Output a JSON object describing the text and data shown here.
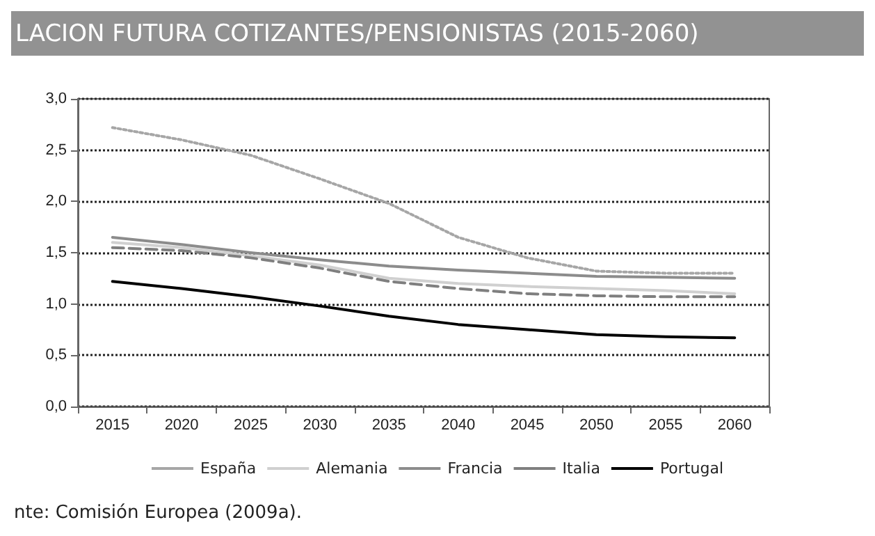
{
  "chart_data": {
    "type": "line",
    "title": "LACION FUTURA COTIZANTES/PENSIONISTAS (2015-2060)",
    "annotations": [
      "nte: Comisión Europea (2009a)."
    ],
    "categories": [
      "2015",
      "2020",
      "2025",
      "2030",
      "2035",
      "2040",
      "2045",
      "2050",
      "2055",
      "2060"
    ],
    "series": [
      {
        "name": "España",
        "color": "#a6a6a6",
        "line_style": "dotted",
        "values": [
          2.72,
          2.6,
          2.45,
          2.22,
          1.98,
          1.65,
          1.45,
          1.32,
          1.3,
          1.3
        ]
      },
      {
        "name": "Alemania",
        "color": "#d0d0d0",
        "line_style": "solid",
        "values": [
          1.6,
          1.55,
          1.47,
          1.38,
          1.25,
          1.2,
          1.17,
          1.15,
          1.13,
          1.1
        ]
      },
      {
        "name": "Francia",
        "color": "#8c8c8c",
        "line_style": "solid",
        "values": [
          1.65,
          1.58,
          1.5,
          1.43,
          1.37,
          1.33,
          1.3,
          1.27,
          1.26,
          1.25
        ]
      },
      {
        "name": "Italia",
        "color": "#7f7f7f",
        "line_style": "dashed",
        "values": [
          1.55,
          1.52,
          1.45,
          1.35,
          1.22,
          1.15,
          1.1,
          1.08,
          1.07,
          1.07
        ]
      },
      {
        "name": "Portugal",
        "color": "#000000",
        "line_style": "solid",
        "values": [
          1.22,
          1.15,
          1.07,
          0.98,
          0.88,
          0.8,
          0.75,
          0.7,
          0.68,
          0.67
        ]
      }
    ],
    "ylim": [
      0,
      3
    ],
    "yticks": [
      {
        "value": 0,
        "label": "0,0"
      },
      {
        "value": 0.5,
        "label": "0,5"
      },
      {
        "value": 1,
        "label": "1,0"
      },
      {
        "value": 1.5,
        "label": "1,5"
      },
      {
        "value": 2,
        "label": "2,0"
      },
      {
        "value": 2.5,
        "label": "2,5"
      },
      {
        "value": 3,
        "label": "3,0"
      }
    ],
    "grid": "y",
    "legend": "bottom",
    "marker": "none"
  }
}
